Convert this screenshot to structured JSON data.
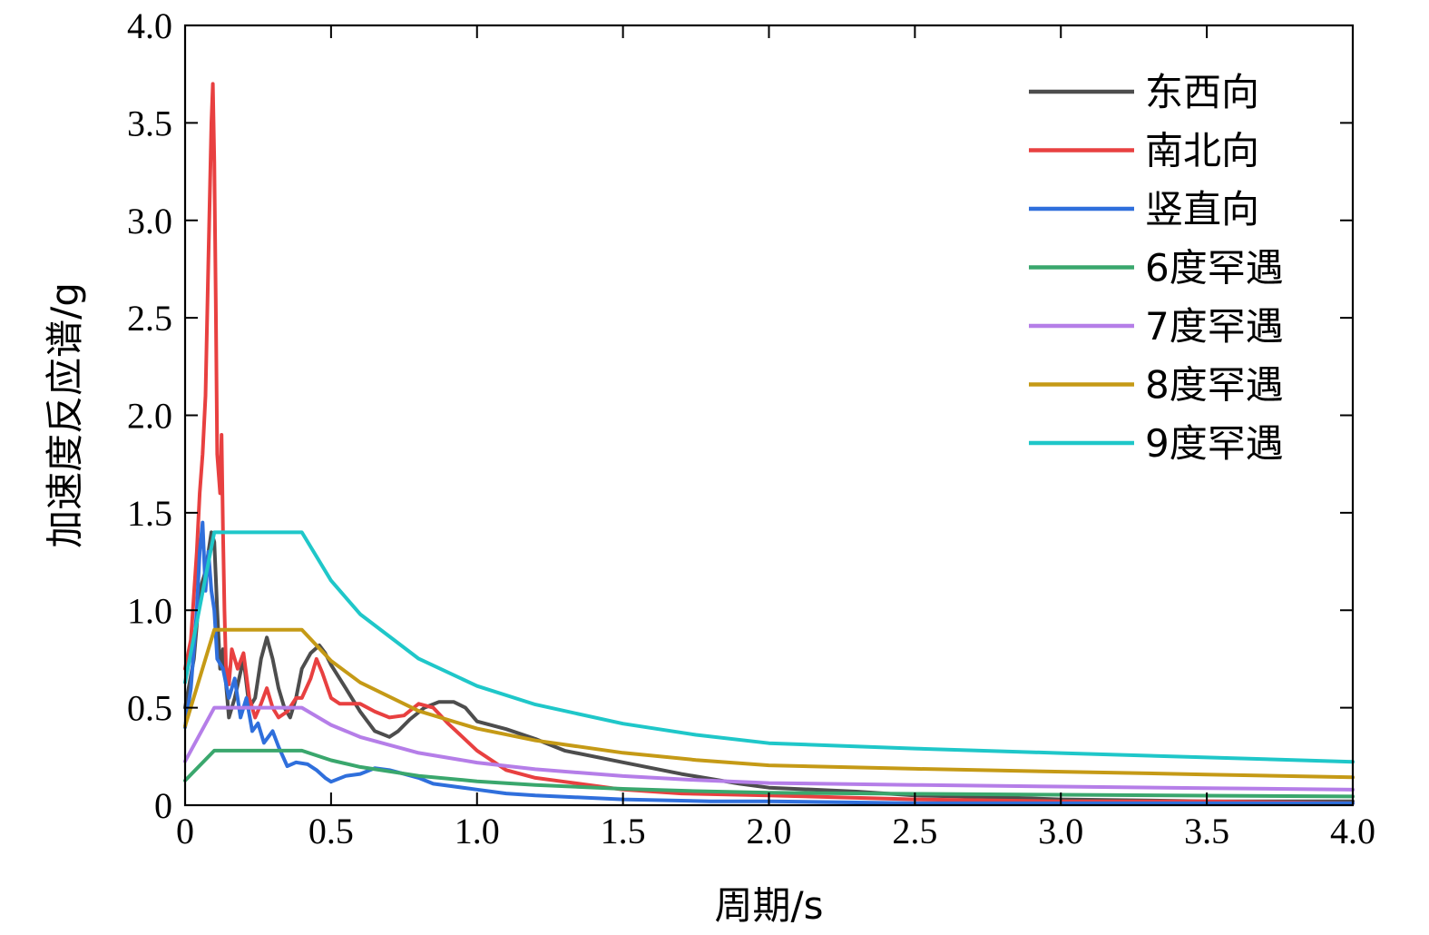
{
  "chart_data": {
    "type": "line",
    "title": "",
    "xlabel": "周期/s",
    "ylabel": "加速度反应谱/g",
    "xlim": [
      0,
      4.0
    ],
    "ylim": [
      0,
      4.0
    ],
    "x_ticks": [
      "0",
      "0.5",
      "1.0",
      "1.5",
      "2.0",
      "2.5",
      "3.0",
      "3.5",
      "4.0"
    ],
    "y_ticks": [
      "0",
      "0.5",
      "1.0",
      "1.5",
      "2.0",
      "2.5",
      "3.0",
      "3.5",
      "4.0"
    ],
    "grid": false,
    "legend_position": "top-right",
    "series": [
      {
        "name": "东西向",
        "color": "#4d4d4d",
        "x": [
          0,
          0.03,
          0.05,
          0.07,
          0.09,
          0.1,
          0.11,
          0.12,
          0.13,
          0.15,
          0.17,
          0.2,
          0.22,
          0.24,
          0.26,
          0.28,
          0.3,
          0.32,
          0.34,
          0.36,
          0.38,
          0.4,
          0.43,
          0.46,
          0.48,
          0.5,
          0.55,
          0.6,
          0.65,
          0.7,
          0.73,
          0.77,
          0.82,
          0.87,
          0.92,
          0.96,
          1.0,
          1.1,
          1.2,
          1.3,
          1.5,
          1.7,
          1.9,
          2.0,
          2.3,
          2.5,
          2.8,
          3.0,
          3.5,
          4.0
        ],
        "y": [
          0.5,
          0.75,
          1.1,
          1.2,
          1.4,
          1.35,
          1.0,
          0.7,
          0.8,
          0.45,
          0.55,
          0.75,
          0.5,
          0.55,
          0.75,
          0.86,
          0.75,
          0.6,
          0.5,
          0.45,
          0.55,
          0.7,
          0.78,
          0.82,
          0.78,
          0.72,
          0.6,
          0.48,
          0.38,
          0.35,
          0.38,
          0.44,
          0.5,
          0.53,
          0.53,
          0.5,
          0.43,
          0.39,
          0.34,
          0.28,
          0.22,
          0.16,
          0.11,
          0.09,
          0.07,
          0.05,
          0.04,
          0.03,
          0.02,
          0.02
        ]
      },
      {
        "name": "南北向",
        "color": "#e84040",
        "x": [
          0,
          0.02,
          0.04,
          0.05,
          0.06,
          0.07,
          0.08,
          0.09,
          0.095,
          0.1,
          0.105,
          0.11,
          0.12,
          0.125,
          0.13,
          0.135,
          0.14,
          0.15,
          0.16,
          0.18,
          0.2,
          0.22,
          0.24,
          0.26,
          0.28,
          0.3,
          0.32,
          0.35,
          0.38,
          0.4,
          0.43,
          0.45,
          0.47,
          0.5,
          0.53,
          0.6,
          0.65,
          0.7,
          0.75,
          0.8,
          0.85,
          0.9,
          0.95,
          1.0,
          1.1,
          1.2,
          1.3,
          1.5,
          1.7,
          2.0,
          2.5,
          3.0,
          3.5,
          4.0
        ],
        "y": [
          0.7,
          0.85,
          1.3,
          1.6,
          1.8,
          2.1,
          2.8,
          3.5,
          3.7,
          3.3,
          2.6,
          1.8,
          1.6,
          1.9,
          1.4,
          1.0,
          0.72,
          0.62,
          0.8,
          0.7,
          0.78,
          0.55,
          0.45,
          0.52,
          0.6,
          0.5,
          0.45,
          0.48,
          0.55,
          0.55,
          0.65,
          0.75,
          0.68,
          0.55,
          0.52,
          0.52,
          0.48,
          0.45,
          0.46,
          0.52,
          0.5,
          0.42,
          0.35,
          0.28,
          0.18,
          0.14,
          0.12,
          0.08,
          0.06,
          0.05,
          0.03,
          0.02,
          0.02,
          0.01
        ]
      },
      {
        "name": "竖直向",
        "color": "#2f6fdc",
        "x": [
          0,
          0.02,
          0.04,
          0.05,
          0.06,
          0.07,
          0.08,
          0.09,
          0.1,
          0.11,
          0.13,
          0.15,
          0.17,
          0.19,
          0.21,
          0.23,
          0.25,
          0.27,
          0.3,
          0.32,
          0.35,
          0.38,
          0.42,
          0.45,
          0.48,
          0.5,
          0.55,
          0.6,
          0.65,
          0.7,
          0.75,
          0.8,
          0.85,
          0.9,
          1.0,
          1.1,
          1.2,
          1.5,
          1.8,
          2.0,
          2.5,
          3.0,
          3.5,
          4.0
        ],
        "y": [
          0.4,
          0.6,
          1.0,
          1.3,
          1.45,
          1.1,
          1.3,
          1.1,
          1.0,
          0.75,
          0.7,
          0.55,
          0.65,
          0.45,
          0.55,
          0.38,
          0.42,
          0.32,
          0.38,
          0.3,
          0.2,
          0.22,
          0.21,
          0.18,
          0.14,
          0.12,
          0.15,
          0.16,
          0.19,
          0.18,
          0.16,
          0.14,
          0.11,
          0.1,
          0.08,
          0.06,
          0.05,
          0.03,
          0.02,
          0.02,
          0.01,
          0.01,
          0.01,
          0.01
        ]
      },
      {
        "name": "6度罕遇",
        "color": "#3aa76d",
        "x": [
          0,
          0.1,
          0.4,
          0.5,
          0.6,
          0.8,
          1.0,
          1.2,
          1.5,
          1.75,
          2.0,
          2.5,
          3.0,
          3.5,
          4.0
        ],
        "y": [
          0.126,
          0.28,
          0.28,
          0.2304,
          0.1959,
          0.1503,
          0.1223,
          0.1033,
          0.0836,
          0.0722,
          0.0636,
          0.0581,
          0.0535,
          0.049,
          0.0445
        ]
      },
      {
        "name": "7度罕遇",
        "color": "#b57ee8",
        "x": [
          0,
          0.1,
          0.4,
          0.5,
          0.6,
          0.8,
          1.0,
          1.2,
          1.5,
          1.75,
          2.0,
          2.5,
          3.0,
          3.5,
          4.0
        ],
        "y": [
          0.225,
          0.5,
          0.5,
          0.4115,
          0.3499,
          0.2684,
          0.2184,
          0.1844,
          0.1493,
          0.1289,
          0.1136,
          0.1037,
          0.0955,
          0.0875,
          0.0795
        ]
      },
      {
        "name": "8度罕遇",
        "color": "#c59a16",
        "x": [
          0,
          0.1,
          0.4,
          0.5,
          0.6,
          0.8,
          1.0,
          1.2,
          1.5,
          1.75,
          2.0,
          2.5,
          3.0,
          3.5,
          4.0
        ],
        "y": [
          0.405,
          0.9,
          0.9,
          0.7406,
          0.6298,
          0.4832,
          0.3931,
          0.3319,
          0.2688,
          0.232,
          0.2044,
          0.1867,
          0.1719,
          0.1575,
          0.1431
        ]
      },
      {
        "name": "9度罕遇",
        "color": "#1fc7c9",
        "x": [
          0,
          0.1,
          0.4,
          0.5,
          0.6,
          0.8,
          1.0,
          1.2,
          1.5,
          1.75,
          2.0,
          2.5,
          3.0,
          3.5,
          4.0
        ],
        "y": [
          0.63,
          1.4,
          1.4,
          1.152,
          0.9797,
          0.7516,
          0.6115,
          0.5163,
          0.4181,
          0.3609,
          0.318,
          0.2905,
          0.2675,
          0.245,
          0.2225
        ]
      }
    ]
  }
}
